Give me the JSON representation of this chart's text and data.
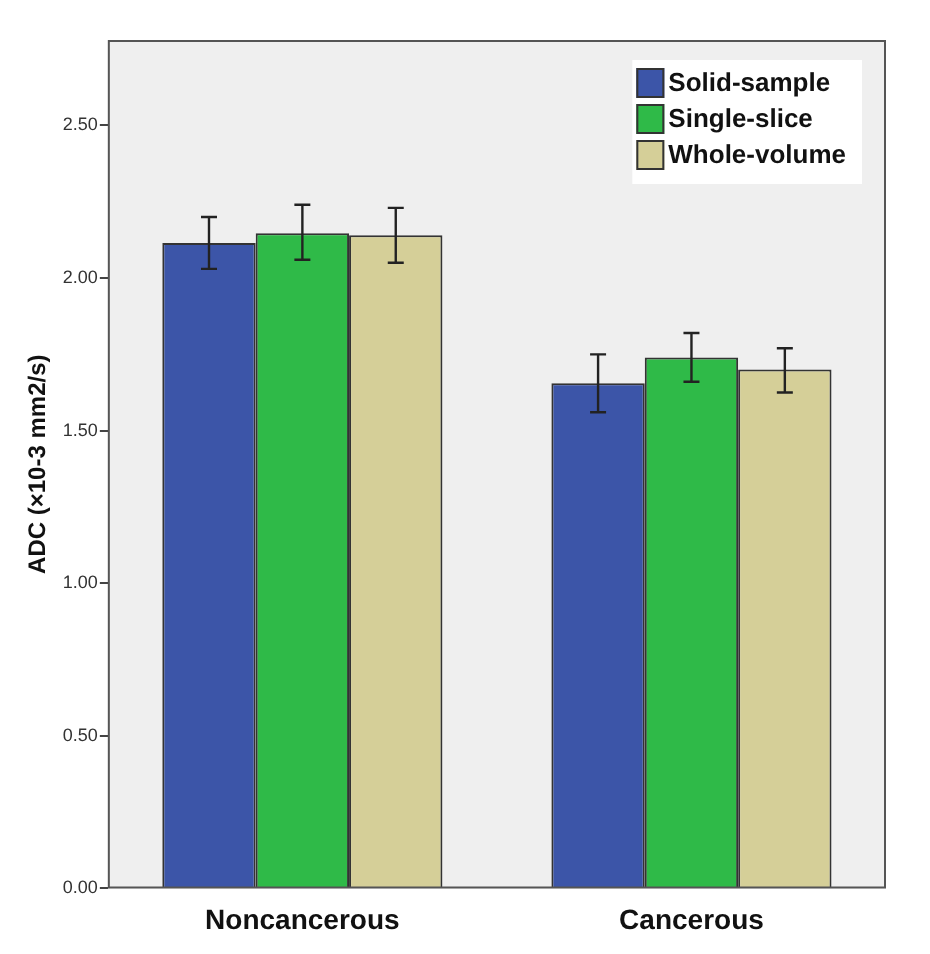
{
  "chart_data": {
    "type": "bar",
    "ylabel": "ADC (×10-3 mm2/s)",
    "categories": [
      "Noncancerous",
      "Cancerous"
    ],
    "series": [
      {
        "name": "Solid-sample",
        "color": "#3c55a8",
        "values": [
          2.115,
          1.655
        ],
        "errors": [
          [
            2.03,
            2.2
          ],
          [
            1.56,
            1.75
          ]
        ]
      },
      {
        "name": "Single-slice",
        "color": "#2fba48",
        "values": [
          2.147,
          1.74
        ],
        "errors": [
          [
            2.06,
            2.24
          ],
          [
            1.66,
            1.82
          ]
        ]
      },
      {
        "name": "Whole-volume",
        "color": "#d5cf98",
        "values": [
          2.14,
          1.7
        ],
        "errors": [
          [
            2.05,
            2.23
          ],
          [
            1.625,
            1.77
          ]
        ]
      }
    ],
    "ylim": [
      0,
      2.78
    ],
    "yticks": [
      {
        "value": 0,
        "label": "0.00"
      },
      {
        "value": 0.5,
        "label": "0.50"
      },
      {
        "value": 1,
        "label": "1.00"
      },
      {
        "value": 1.5,
        "label": "1.50"
      },
      {
        "value": 2,
        "label": "2.00"
      },
      {
        "value": 2.5,
        "label": "2.50"
      }
    ],
    "grid": false,
    "legend": "top right"
  }
}
